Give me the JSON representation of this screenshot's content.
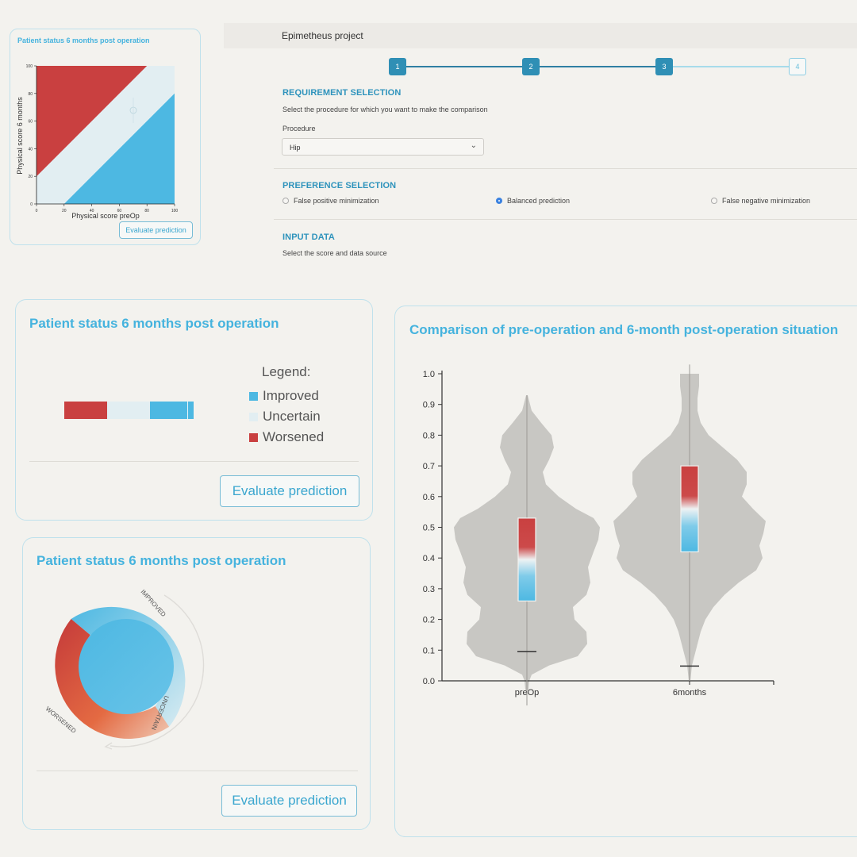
{
  "small_card": {
    "title": "Patient status 6 months post operation",
    "xlabel": "Physical score preOp",
    "ylabel": "Physical score 6 months",
    "ticks": [
      "0",
      "20",
      "40",
      "60",
      "80",
      "100"
    ],
    "button": "Evaluate prediction"
  },
  "header": {
    "title": "Epimetheus project"
  },
  "stepper": {
    "steps": [
      "1",
      "2",
      "3",
      "4"
    ],
    "current": 3
  },
  "requirement": {
    "title": "REQUIREMENT SELECTION",
    "description": "Select the procedure for which you want to make the comparison",
    "procedure_label": "Procedure",
    "procedure_value": "Hip"
  },
  "preference": {
    "title": "PREFERENCE SELECTION",
    "options": [
      "False positive minimization",
      "Balanced prediction",
      "False negative minimization"
    ],
    "selected": "Balanced prediction"
  },
  "input": {
    "title": "INPUT DATA",
    "description": "Select the score and data source"
  },
  "legend_card": {
    "title": "Patient status 6 months post operation",
    "legend_title": "Legend:",
    "legend": [
      "Improved",
      "Uncertain",
      "Worsened"
    ],
    "button": "Evaluate prediction"
  },
  "donut_card": {
    "title": "Patient status 6 months post operation",
    "labels": [
      "IMPROVED",
      "UNCERTAIN",
      "WORSENED"
    ],
    "button": "Evaluate prediction"
  },
  "violin_card": {
    "title": "Comparison of pre-operation and 6-month post-operation situation"
  },
  "colors": {
    "improved": "#4db8e2",
    "uncertain": "#e2eef2",
    "worsened": "#c94040",
    "accent": "#45b3de",
    "violin": "#c8c7c3"
  },
  "chart_data": [
    {
      "type": "area",
      "xlabel": "Physical score preOp",
      "ylabel": "Physical score 6 months",
      "xlim": [
        0,
        100
      ],
      "ylim": [
        0,
        100
      ],
      "regions": [
        {
          "name": "Worsened",
          "polygon": [
            [
              0,
              20
            ],
            [
              0,
              100
            ],
            [
              80,
              100
            ]
          ]
        },
        {
          "name": "Uncertain",
          "polygon": [
            [
              0,
              0
            ],
            [
              20,
              0
            ],
            [
              100,
              80
            ],
            [
              100,
              100
            ],
            [
              80,
              100
            ],
            [
              0,
              20
            ]
          ]
        },
        {
          "name": "Improved",
          "polygon": [
            [
              20,
              0
            ],
            [
              100,
              0
            ],
            [
              100,
              80
            ]
          ]
        }
      ]
    },
    {
      "type": "bar",
      "orientation": "horizontal",
      "segments": [
        {
          "name": "Worsened",
          "value": 0.333
        },
        {
          "name": "Uncertain",
          "value": 0.333
        },
        {
          "name": "Improved",
          "value": 0.334
        }
      ],
      "marker": 0.96
    },
    {
      "type": "pie",
      "labels": [
        "IMPROVED",
        "UNCERTAIN",
        "WORSENED"
      ]
    },
    {
      "type": "violin",
      "categories": [
        "preOp",
        "6months"
      ],
      "ylim": [
        0,
        1
      ],
      "yticks": [
        "0.0",
        "0.1",
        "0.2",
        "0.3",
        "0.4",
        "0.5",
        "0.6",
        "0.7",
        "0.8",
        "0.9",
        "1.0"
      ],
      "grid": false,
      "series": [
        {
          "name": "preOp",
          "min": 0.095,
          "q1": 0.26,
          "q3": 0.53,
          "range": [
            -0.08,
            0.93
          ]
        },
        {
          "name": "6months",
          "min": 0.048,
          "q1": 0.42,
          "q3": 0.7,
          "range": [
            0.0,
            1.03
          ]
        }
      ]
    }
  ]
}
